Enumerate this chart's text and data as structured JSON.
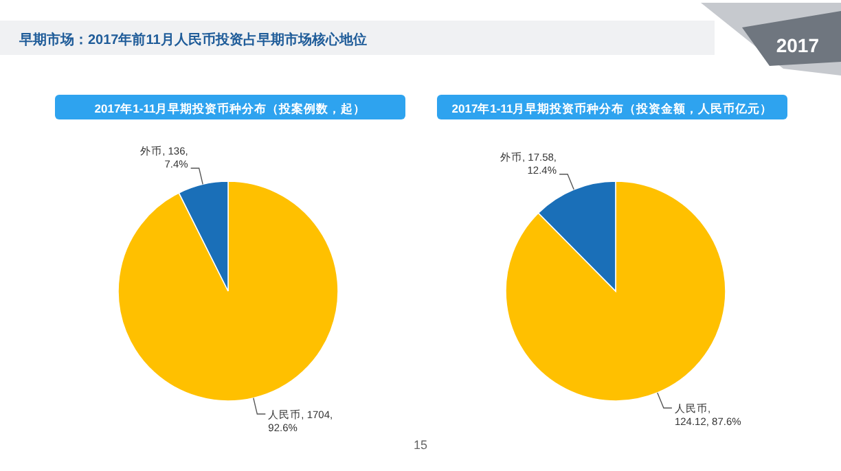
{
  "chart_data": [
    {
      "type": "pie",
      "title": "2017年1-11月早期投资币种分布（投案例数，起）",
      "categories": [
        "人民币",
        "外币"
      ],
      "values": [
        1704,
        136
      ],
      "colors": [
        "#ffc000",
        "#1a6fb8"
      ],
      "value_labels": [
        ", 1704,\n92.6%",
        ", 136,\n7.4%"
      ],
      "annotations": [
        "早期市场：2017年前11月人民币投资占早期市场核心地位",
        "2017"
      ]
    },
    {
      "type": "pie",
      "title": "2017年1-11月早期投资币种分布（投资金额，人民币亿元）",
      "categories": [
        "人民币",
        "外币"
      ],
      "values": [
        124.12,
        17.58
      ],
      "colors": [
        "#ffc000",
        "#1a6fb8"
      ],
      "value_labels": [
        ",\n124.12, 87.6%",
        ", 17.58,\n12.4%"
      ],
      "annotations": [
        "15"
      ]
    }
  ]
}
